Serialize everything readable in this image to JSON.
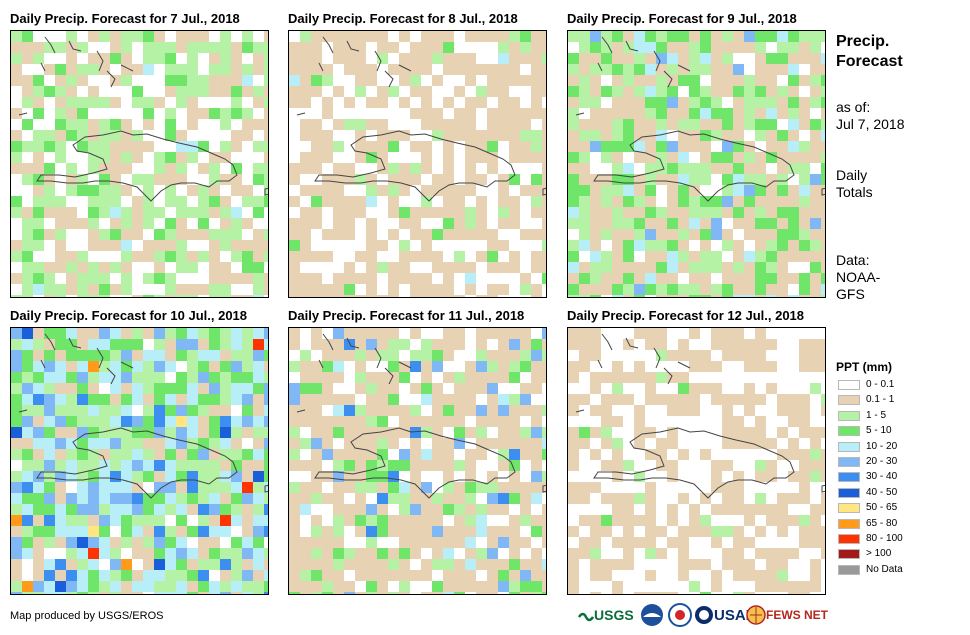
{
  "panels": [
    {
      "title": "Daily Precip. Forecast for 7 Jul., 2018"
    },
    {
      "title": "Daily Precip. Forecast for 8 Jul., 2018"
    },
    {
      "title": "Daily Precip. Forecast for 9 Jul., 2018"
    },
    {
      "title": "Daily Precip. Forecast for 10 Jul., 2018"
    },
    {
      "title": "Daily Precip. Forecast for 11 Jul., 2018"
    },
    {
      "title": "Daily Precip. Forecast for 12 Jul., 2018"
    }
  ],
  "side": {
    "title_line1": "Precip.",
    "title_line2": "Forecast",
    "asof_label": "as of:",
    "asof_date": "Jul 7, 2018",
    "daily_line1": "Daily",
    "daily_line2": "Totals",
    "data_line1": "Data:",
    "data_line2": "NOAA-",
    "data_line3": "GFS"
  },
  "legend": {
    "title": "PPT (mm)",
    "items": [
      {
        "label": "0 - 0.1",
        "color": "#ffffff"
      },
      {
        "label": "0.1 - 1",
        "color": "#e7d3b4"
      },
      {
        "label": "1 - 5",
        "color": "#b5f2a6"
      },
      {
        "label": "5 - 10",
        "color": "#6fe66a"
      },
      {
        "label": "10 - 20",
        "color": "#b7eef7"
      },
      {
        "label": "20 - 30",
        "color": "#7fb8f5"
      },
      {
        "label": "30 - 40",
        "color": "#3c8ff0"
      },
      {
        "label": "40 - 50",
        "color": "#1a5fd9"
      },
      {
        "label": "50 - 65",
        "color": "#ffe680"
      },
      {
        "label": "65 - 80",
        "color": "#ff9a1a"
      },
      {
        "label": "80 - 100",
        "color": "#ff3300"
      },
      {
        "label": "> 100",
        "color": "#a31a1a"
      },
      {
        "label": "No Data",
        "color": "#999999"
      }
    ]
  },
  "credit": "Map produced by USGS/EROS",
  "logos": {
    "usgs": "USGS",
    "usaid": "USAID",
    "fewsnet": "FEWS NET"
  }
}
